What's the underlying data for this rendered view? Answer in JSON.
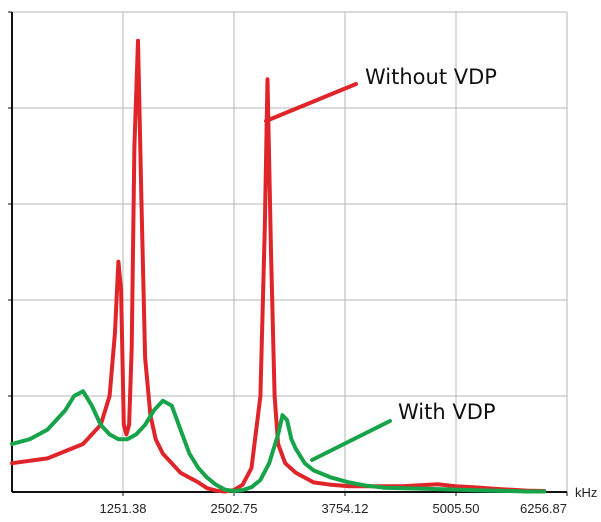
{
  "chart_data": {
    "type": "line",
    "title": "",
    "xlabel": "",
    "ylabel": "",
    "x_unit": "kHz",
    "xlim": [
      0,
      6256.87
    ],
    "ylim": [
      0,
      1
    ],
    "x_tick_values": [
      1251.38,
      2502.75,
      3754.12,
      5005.5,
      6256.87
    ],
    "x_tick_labels": [
      "1251.38",
      "2502.75",
      "3754.12",
      "5005.50",
      "6256.87"
    ],
    "y_tick_values": [
      0,
      0.2,
      0.4,
      0.6,
      0.8,
      1.0
    ],
    "y_tick_labels": [],
    "grid": true,
    "colors": {
      "without": "#e0252a",
      "with": "#16a34a",
      "grid": "#b5b5b5"
    },
    "annotations": [
      {
        "series": "Without VDP",
        "text": "Without VDP"
      },
      {
        "series": "With VDP",
        "text": "With VDP"
      }
    ],
    "series": [
      {
        "name": "Without VDP",
        "color": "#e0252a",
        "x": [
          0,
          400,
          800,
          1000,
          1100,
          1160,
          1200,
          1230,
          1260,
          1290,
          1320,
          1350,
          1380,
          1420,
          1460,
          1500,
          1560,
          1620,
          1700,
          1800,
          1900,
          2000,
          2100,
          2200,
          2300,
          2400,
          2500,
          2600,
          2700,
          2800,
          2850,
          2880,
          2920,
          2960,
          3000,
          3080,
          3200,
          3400,
          3600,
          3800,
          4000,
          4200,
          4400,
          4600,
          4800,
          5000,
          5200,
          5500,
          5800,
          6000
        ],
        "y": [
          0.06,
          0.07,
          0.1,
          0.14,
          0.2,
          0.33,
          0.48,
          0.42,
          0.14,
          0.12,
          0.14,
          0.3,
          0.72,
          0.94,
          0.6,
          0.28,
          0.16,
          0.11,
          0.08,
          0.06,
          0.04,
          0.03,
          0.02,
          0.008,
          0.003,
          0.001,
          0.004,
          0.015,
          0.05,
          0.2,
          0.55,
          0.86,
          0.5,
          0.2,
          0.1,
          0.06,
          0.04,
          0.02,
          0.015,
          0.012,
          0.012,
          0.012,
          0.012,
          0.014,
          0.016,
          0.012,
          0.01,
          0.006,
          0.003,
          0.002
        ]
      },
      {
        "name": "With VDP",
        "color": "#16a34a",
        "x": [
          0,
          200,
          400,
          600,
          700,
          800,
          900,
          1000,
          1100,
          1200,
          1300,
          1400,
          1500,
          1600,
          1700,
          1800,
          1900,
          2000,
          2100,
          2200,
          2300,
          2400,
          2500,
          2600,
          2700,
          2800,
          2900,
          3000,
          3050,
          3100,
          3150,
          3200,
          3300,
          3400,
          3600,
          3800,
          4000,
          4200,
          4400,
          4600,
          4800,
          5000,
          5200,
          5400,
          5600,
          5800,
          6000
        ],
        "y": [
          0.1,
          0.11,
          0.13,
          0.17,
          0.2,
          0.21,
          0.18,
          0.14,
          0.12,
          0.11,
          0.11,
          0.12,
          0.14,
          0.17,
          0.19,
          0.18,
          0.13,
          0.08,
          0.05,
          0.03,
          0.015,
          0.005,
          0.002,
          0.004,
          0.01,
          0.025,
          0.06,
          0.12,
          0.16,
          0.15,
          0.11,
          0.09,
          0.06,
          0.045,
          0.03,
          0.02,
          0.013,
          0.009,
          0.008,
          0.007,
          0.006,
          0.005,
          0.004,
          0.003,
          0.002,
          0.001,
          0.001
        ]
      }
    ]
  }
}
